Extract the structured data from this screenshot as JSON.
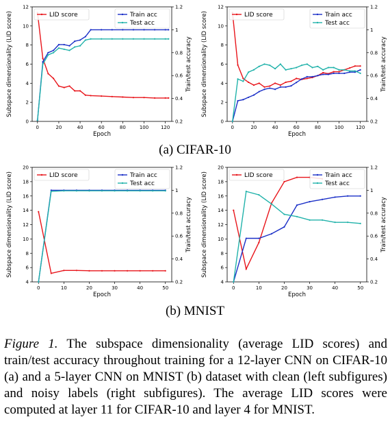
{
  "chart_data": [
    {
      "type": "line",
      "xlabel": "Epoch",
      "ylabel": "Subspace dimensionality (LID score)",
      "y2label": "Train/test accuracy",
      "xlim": [
        -5,
        126
      ],
      "ylim": [
        0,
        12
      ],
      "y2lim": [
        0.2,
        1.2
      ],
      "xticks": [
        0,
        20,
        40,
        60,
        80,
        100,
        120
      ],
      "yticks": [
        0,
        2,
        4,
        6,
        8,
        10,
        12
      ],
      "y2ticks": [
        0.2,
        0.4,
        0.6,
        0.8,
        1.0,
        1.2
      ],
      "legend_left": "top-left",
      "legend_right": "top-right",
      "series": [
        {
          "name": "LID score",
          "axis": "left",
          "color": "#e8141a",
          "x": [
            0,
            5,
            10,
            15,
            20,
            25,
            30,
            35,
            40,
            45,
            50,
            60,
            70,
            80,
            90,
            100,
            110,
            120,
            123
          ],
          "y": [
            11.4,
            6.6,
            5.0,
            4.5,
            3.7,
            3.55,
            3.7,
            3.2,
            3.2,
            2.75,
            2.7,
            2.65,
            2.6,
            2.55,
            2.5,
            2.5,
            2.45,
            2.45,
            2.45
          ]
        },
        {
          "name": "Train acc",
          "axis": "right",
          "color": "#1a2fc7",
          "x": [
            0,
            5,
            10,
            15,
            20,
            25,
            30,
            35,
            40,
            45,
            50,
            60,
            70,
            80,
            90,
            100,
            110,
            120,
            123
          ],
          "y": [
            0.21,
            0.72,
            0.8,
            0.82,
            0.87,
            0.87,
            0.86,
            0.9,
            0.91,
            0.94,
            1.0,
            1.0,
            1.0,
            1.0,
            1.0,
            1.0,
            1.0,
            1.0,
            1.0
          ]
        },
        {
          "name": "Test acc",
          "axis": "right",
          "color": "#20b2aa",
          "x": [
            0,
            5,
            10,
            15,
            20,
            25,
            30,
            35,
            40,
            45,
            50,
            60,
            70,
            80,
            90,
            100,
            110,
            120,
            123
          ],
          "y": [
            0.21,
            0.7,
            0.78,
            0.8,
            0.84,
            0.83,
            0.82,
            0.85,
            0.86,
            0.91,
            0.92,
            0.92,
            0.92,
            0.92,
            0.92,
            0.92,
            0.92,
            0.92,
            0.92
          ]
        }
      ]
    },
    {
      "type": "line",
      "xlabel": "Epoch",
      "ylabel": "Subspace dimensionality (LID score)",
      "y2label": "Train/test accuracy",
      "xlim": [
        -5,
        126
      ],
      "ylim": [
        0,
        12
      ],
      "y2lim": [
        0.2,
        1.2
      ],
      "xticks": [
        0,
        20,
        40,
        60,
        80,
        100,
        120
      ],
      "yticks": [
        0,
        2,
        4,
        6,
        8,
        10,
        12
      ],
      "y2ticks": [
        0.2,
        0.4,
        0.6,
        0.8,
        1.0,
        1.2
      ],
      "legend_left": "top-left",
      "legend_right": "top-right",
      "series": [
        {
          "name": "LID score",
          "axis": "left",
          "color": "#e8141a",
          "x": [
            0,
            5,
            10,
            15,
            20,
            25,
            30,
            35,
            40,
            45,
            50,
            55,
            60,
            65,
            70,
            75,
            80,
            85,
            90,
            95,
            100,
            105,
            110,
            115,
            120
          ],
          "y": [
            11.4,
            5.9,
            4.5,
            4.1,
            3.8,
            4.0,
            3.6,
            3.7,
            4.0,
            3.8,
            4.1,
            4.2,
            4.5,
            4.4,
            4.5,
            4.6,
            4.8,
            5.1,
            5.0,
            5.2,
            5.2,
            5.4,
            5.6,
            5.8,
            5.8
          ]
        },
        {
          "name": "Train acc",
          "axis": "right",
          "color": "#1a2fc7",
          "x": [
            0,
            5,
            10,
            15,
            20,
            25,
            30,
            35,
            40,
            45,
            50,
            55,
            60,
            65,
            70,
            75,
            80,
            85,
            90,
            95,
            100,
            105,
            110,
            115,
            120
          ],
          "y": [
            0.2,
            0.38,
            0.39,
            0.41,
            0.43,
            0.46,
            0.48,
            0.49,
            0.48,
            0.5,
            0.5,
            0.51,
            0.54,
            0.57,
            0.59,
            0.59,
            0.6,
            0.61,
            0.61,
            0.62,
            0.62,
            0.62,
            0.63,
            0.63,
            0.65
          ]
        },
        {
          "name": "Test acc",
          "axis": "right",
          "color": "#20b2aa",
          "x": [
            0,
            5,
            10,
            15,
            20,
            25,
            30,
            35,
            40,
            45,
            50,
            55,
            60,
            65,
            70,
            75,
            80,
            85,
            90,
            95,
            100,
            105,
            110,
            115,
            120
          ],
          "y": [
            0.2,
            0.57,
            0.55,
            0.63,
            0.65,
            0.68,
            0.7,
            0.69,
            0.66,
            0.7,
            0.65,
            0.66,
            0.67,
            0.69,
            0.7,
            0.67,
            0.68,
            0.65,
            0.67,
            0.67,
            0.65,
            0.65,
            0.64,
            0.64,
            0.62
          ]
        }
      ]
    },
    {
      "type": "line",
      "xlabel": "Epoch",
      "ylabel": "Subspace dimensionality (LID score)",
      "y2label": "Train/test accuracy",
      "xlim": [
        -2.5,
        52.5
      ],
      "ylim": [
        4,
        20
      ],
      "y2lim": [
        0.2,
        1.2
      ],
      "xticks": [
        0,
        10,
        20,
        30,
        40,
        50
      ],
      "yticks": [
        4,
        6,
        8,
        10,
        12,
        14,
        16,
        18,
        20
      ],
      "y2ticks": [
        0.2,
        0.4,
        0.6,
        0.8,
        1.0,
        1.2
      ],
      "legend_left": "top-left",
      "legend_right": "top-right",
      "series": [
        {
          "name": "LID score",
          "axis": "left",
          "color": "#e8141a",
          "x": [
            0,
            5,
            10,
            15,
            20,
            25,
            30,
            35,
            40,
            45,
            50
          ],
          "y": [
            13.8,
            5.2,
            5.6,
            5.6,
            5.55,
            5.55,
            5.55,
            5.55,
            5.55,
            5.55,
            5.55
          ]
        },
        {
          "name": "Train acc",
          "axis": "right",
          "color": "#1a2fc7",
          "x": [
            0,
            5,
            10,
            15,
            20,
            25,
            30,
            35,
            40,
            45,
            50
          ],
          "y": [
            0.2,
            1.0,
            1.0,
            1.0,
            1.0,
            1.0,
            1.0,
            1.0,
            1.0,
            1.0,
            1.0
          ]
        },
        {
          "name": "Test acc",
          "axis": "right",
          "color": "#20b2aa",
          "x": [
            0,
            5,
            10,
            15,
            20,
            25,
            30,
            35,
            40,
            45,
            50
          ],
          "y": [
            0.2,
            0.99,
            0.995,
            0.995,
            0.995,
            0.995,
            0.995,
            0.995,
            0.995,
            0.995,
            0.995
          ]
        }
      ]
    },
    {
      "type": "line",
      "xlabel": "Epoch",
      "ylabel": "Subspace dimensionality (LID score)",
      "y2label": "Train/test accuracy",
      "xlim": [
        -2.5,
        52.5
      ],
      "ylim": [
        4,
        20
      ],
      "y2lim": [
        0.2,
        1.2
      ],
      "xticks": [
        0,
        10,
        20,
        30,
        40,
        50
      ],
      "yticks": [
        4,
        6,
        8,
        10,
        12,
        14,
        16,
        18,
        20
      ],
      "y2ticks": [
        0.2,
        0.4,
        0.6,
        0.8,
        1.0,
        1.2
      ],
      "legend_left": "top-left",
      "legend_right": "top-right",
      "series": [
        {
          "name": "LID score",
          "axis": "left",
          "color": "#e8141a",
          "x": [
            0,
            5,
            10,
            15,
            20,
            25,
            30,
            35
          ],
          "y": [
            14.0,
            5.8,
            9.5,
            15.0,
            18.0,
            18.6,
            18.6,
            18.4
          ]
        },
        {
          "name": "Train acc",
          "axis": "right",
          "color": "#1a2fc7",
          "x": [
            0,
            5,
            10,
            15,
            20,
            25,
            30,
            35,
            40,
            45,
            50
          ],
          "y": [
            0.2,
            0.58,
            0.58,
            0.62,
            0.68,
            0.87,
            0.9,
            0.92,
            0.94,
            0.95,
            0.95
          ]
        },
        {
          "name": "Test acc",
          "axis": "right",
          "color": "#20b2aa",
          "x": [
            0,
            5,
            10,
            15,
            20,
            25,
            30,
            35,
            40,
            45,
            50
          ],
          "y": [
            0.2,
            0.99,
            0.96,
            0.88,
            0.79,
            0.77,
            0.74,
            0.74,
            0.72,
            0.72,
            0.71
          ]
        }
      ]
    }
  ],
  "captions": {
    "cifar": "(a) CIFAR-10",
    "mnist": "(b) MNIST",
    "figure_label": "Figure 1.",
    "figure_text": " The subspace dimensionality (average LID scores) and train/test accuracy throughout training for a 12-layer CNN on CIFAR-10 (a) and a 5-layer CNN on MNIST (b) dataset with clean (left subfigures) and noisy labels (right subfigures). The average LID scores were computed at layer 11 for CIFAR-10 and layer 4 for MNIST."
  }
}
